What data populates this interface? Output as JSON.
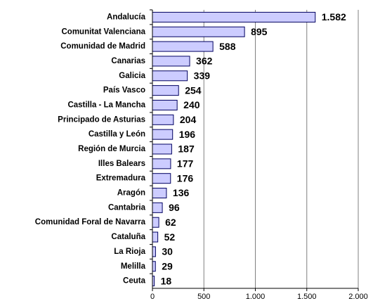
{
  "chart_data": {
    "type": "hbar",
    "categories": [
      "Andalucía",
      "Comunitat Valenciana",
      "Comunidad de Madrid",
      "Canarias",
      "Galicia",
      "País Vasco",
      "Castilla - La Mancha",
      "Principado de Asturias",
      "Castilla y León",
      "Región de Murcia",
      "Illes Balears",
      "Extremadura",
      "Aragón",
      "Cantabria",
      "Comunidad Foral de Navarra",
      "Cataluña",
      "La Rioja",
      "Melilla",
      "Ceuta"
    ],
    "values": [
      1582,
      895,
      588,
      362,
      339,
      254,
      240,
      204,
      196,
      187,
      177,
      176,
      136,
      96,
      62,
      52,
      30,
      29,
      18
    ],
    "value_labels": [
      "1.582",
      "895",
      "588",
      "362",
      "339",
      "254",
      "240",
      "204",
      "196",
      "187",
      "177",
      "176",
      "136",
      "96",
      "62",
      "52",
      "30",
      "29",
      "18"
    ],
    "color": "#ccccff",
    "xlim": [
      0,
      2000
    ],
    "xticks": [
      0,
      500,
      {
        "value": 1000,
        "label": "1.000"
      },
      {
        "value": 1500,
        "label": "1.500"
      },
      {
        "value": 2000,
        "label": "2.000"
      }
    ],
    "grid": true
  }
}
